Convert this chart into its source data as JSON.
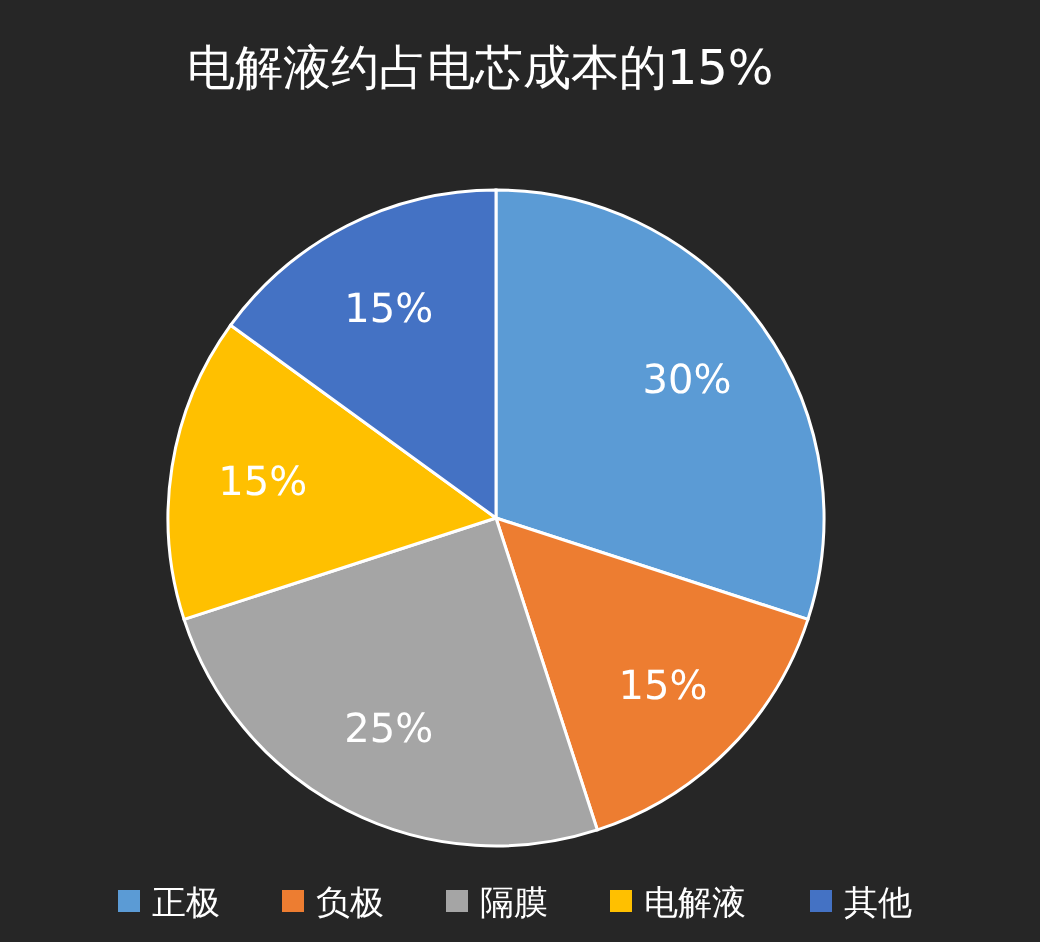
{
  "chart_data": {
    "type": "pie",
    "title": "电解液约占电芯成本的15%",
    "categories": [
      "正极",
      "负极",
      "隔膜",
      "电解液",
      "其他"
    ],
    "values": [
      30,
      15,
      25,
      15,
      15
    ],
    "colors": [
      "#5b9bd5",
      "#ed7d31",
      "#a5a5a5",
      "#ffc000",
      "#4472c4"
    ],
    "value_labels": [
      "30%",
      "15%",
      "25%",
      "15%",
      "15%"
    ],
    "legend": "bottom"
  }
}
